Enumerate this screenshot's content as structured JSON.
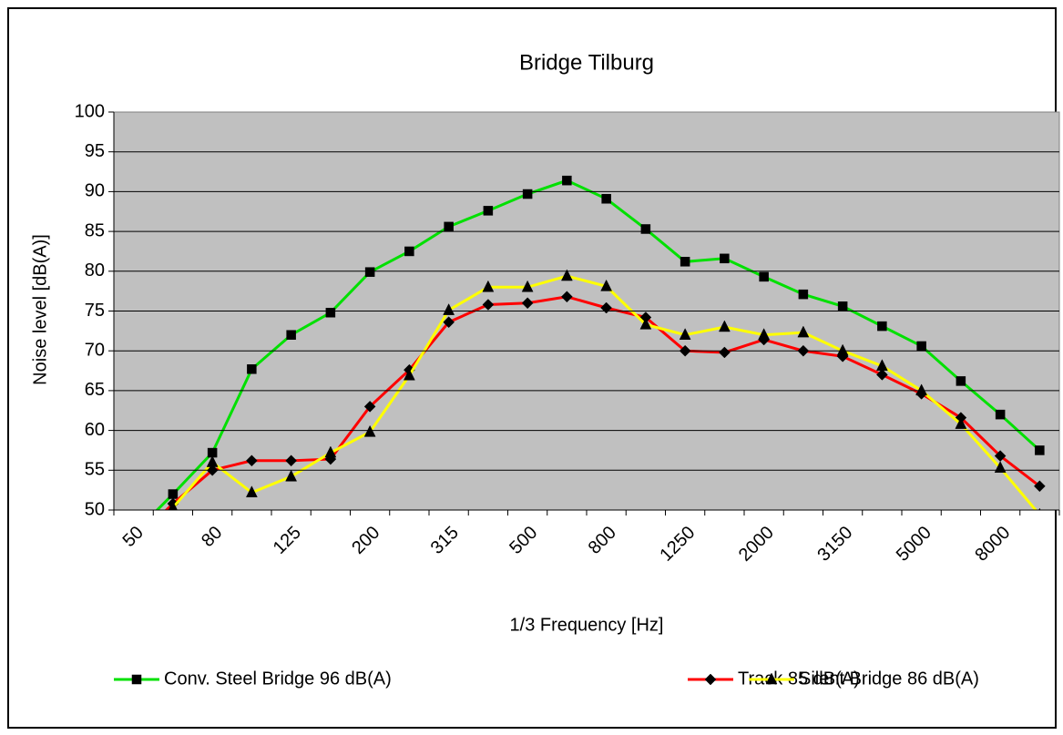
{
  "chart_data": {
    "type": "line",
    "title": "Bridge Tilburg",
    "x_label": "1/3 Frequency [Hz]",
    "y_label": "Noise level [dB(A)]",
    "categories": [
      "50",
      null,
      "80",
      null,
      "125",
      null,
      "200",
      null,
      "315",
      null,
      "500",
      null,
      "800",
      null,
      "1250",
      null,
      "2000",
      null,
      "3150",
      null,
      "5000",
      null,
      "8000",
      null
    ],
    "ylim": [
      50,
      100
    ],
    "yticks": [
      50,
      55,
      60,
      65,
      70,
      75,
      80,
      85,
      90,
      95,
      100
    ],
    "grid": true,
    "legend": "bottom",
    "series": [
      {
        "name": "Conv. Steel Bridge 96 dB(A)",
        "color": "#00e000",
        "marker": "square",
        "values": [
          47,
          52,
          57.2,
          67.7,
          72,
          74.8,
          79.9,
          82.5,
          85.6,
          87.6,
          89.7,
          91.4,
          89.1,
          85.3,
          81.2,
          81.6,
          79.3,
          77.1,
          75.6,
          73.1,
          70.6,
          66.2,
          62,
          57.5
        ]
      },
      {
        "name": "Track 85 dB(A)",
        "color": "#ff0000",
        "marker": "diamond",
        "values": [
          46,
          50.8,
          55,
          56.2,
          56.2,
          56.4,
          63,
          67.6,
          73.6,
          75.8,
          76,
          76.8,
          75.4,
          74.2,
          70,
          69.8,
          71.4,
          70,
          69.3,
          67,
          64.6,
          61.6,
          56.8,
          53
        ]
      },
      {
        "name": "Silent Bridge 86 dB(A)",
        "color": "#ffff00",
        "marker": "triangle",
        "values": [
          45,
          50.3,
          56,
          52.2,
          54.2,
          57.2,
          59.8,
          66.9,
          75.1,
          78,
          78,
          79.4,
          78.1,
          73.3,
          72,
          73,
          72,
          72.3,
          70,
          68.1,
          65,
          60.8,
          55.3,
          49.4
        ]
      }
    ]
  }
}
